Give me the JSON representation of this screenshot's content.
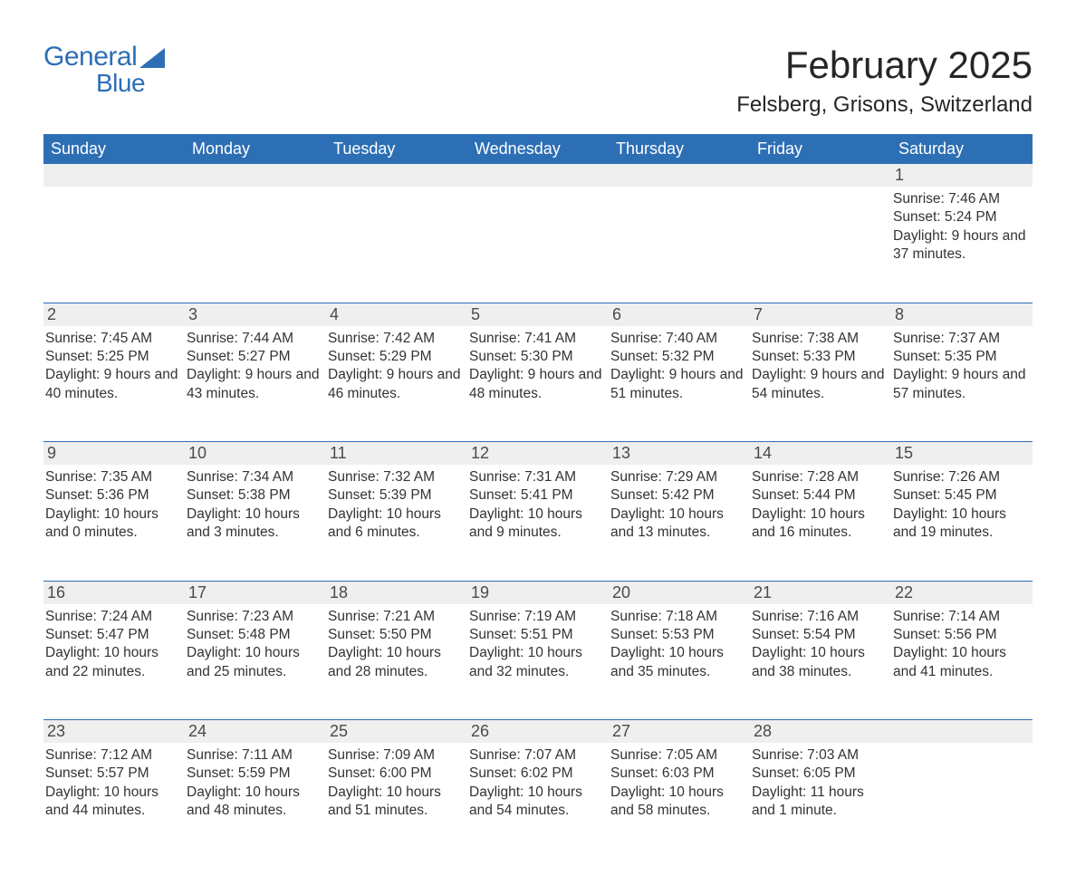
{
  "brand": {
    "general": "General",
    "blue": "Blue"
  },
  "title": "February 2025",
  "location": "Felsberg, Grisons, Switzerland",
  "colors": {
    "header_bg": "#2d6fb5",
    "header_text": "#ffffff",
    "daynum_bg": "#efefef",
    "row_border": "#2d6fb5",
    "body_text": "#333333",
    "page_bg": "#ffffff"
  },
  "weekdays": [
    "Sunday",
    "Monday",
    "Tuesday",
    "Wednesday",
    "Thursday",
    "Friday",
    "Saturday"
  ],
  "weeks": [
    {
      "days": [
        {
          "num": "",
          "sunrise": "",
          "sunset": "",
          "daylight": ""
        },
        {
          "num": "",
          "sunrise": "",
          "sunset": "",
          "daylight": ""
        },
        {
          "num": "",
          "sunrise": "",
          "sunset": "",
          "daylight": ""
        },
        {
          "num": "",
          "sunrise": "",
          "sunset": "",
          "daylight": ""
        },
        {
          "num": "",
          "sunrise": "",
          "sunset": "",
          "daylight": ""
        },
        {
          "num": "",
          "sunrise": "",
          "sunset": "",
          "daylight": ""
        },
        {
          "num": "1",
          "sunrise": "Sunrise: 7:46 AM",
          "sunset": "Sunset: 5:24 PM",
          "daylight": "Daylight: 9 hours and 37 minutes."
        }
      ]
    },
    {
      "days": [
        {
          "num": "2",
          "sunrise": "Sunrise: 7:45 AM",
          "sunset": "Sunset: 5:25 PM",
          "daylight": "Daylight: 9 hours and 40 minutes."
        },
        {
          "num": "3",
          "sunrise": "Sunrise: 7:44 AM",
          "sunset": "Sunset: 5:27 PM",
          "daylight": "Daylight: 9 hours and 43 minutes."
        },
        {
          "num": "4",
          "sunrise": "Sunrise: 7:42 AM",
          "sunset": "Sunset: 5:29 PM",
          "daylight": "Daylight: 9 hours and 46 minutes."
        },
        {
          "num": "5",
          "sunrise": "Sunrise: 7:41 AM",
          "sunset": "Sunset: 5:30 PM",
          "daylight": "Daylight: 9 hours and 48 minutes."
        },
        {
          "num": "6",
          "sunrise": "Sunrise: 7:40 AM",
          "sunset": "Sunset: 5:32 PM",
          "daylight": "Daylight: 9 hours and 51 minutes."
        },
        {
          "num": "7",
          "sunrise": "Sunrise: 7:38 AM",
          "sunset": "Sunset: 5:33 PM",
          "daylight": "Daylight: 9 hours and 54 minutes."
        },
        {
          "num": "8",
          "sunrise": "Sunrise: 7:37 AM",
          "sunset": "Sunset: 5:35 PM",
          "daylight": "Daylight: 9 hours and 57 minutes."
        }
      ]
    },
    {
      "days": [
        {
          "num": "9",
          "sunrise": "Sunrise: 7:35 AM",
          "sunset": "Sunset: 5:36 PM",
          "daylight": "Daylight: 10 hours and 0 minutes."
        },
        {
          "num": "10",
          "sunrise": "Sunrise: 7:34 AM",
          "sunset": "Sunset: 5:38 PM",
          "daylight": "Daylight: 10 hours and 3 minutes."
        },
        {
          "num": "11",
          "sunrise": "Sunrise: 7:32 AM",
          "sunset": "Sunset: 5:39 PM",
          "daylight": "Daylight: 10 hours and 6 minutes."
        },
        {
          "num": "12",
          "sunrise": "Sunrise: 7:31 AM",
          "sunset": "Sunset: 5:41 PM",
          "daylight": "Daylight: 10 hours and 9 minutes."
        },
        {
          "num": "13",
          "sunrise": "Sunrise: 7:29 AM",
          "sunset": "Sunset: 5:42 PM",
          "daylight": "Daylight: 10 hours and 13 minutes."
        },
        {
          "num": "14",
          "sunrise": "Sunrise: 7:28 AM",
          "sunset": "Sunset: 5:44 PM",
          "daylight": "Daylight: 10 hours and 16 minutes."
        },
        {
          "num": "15",
          "sunrise": "Sunrise: 7:26 AM",
          "sunset": "Sunset: 5:45 PM",
          "daylight": "Daylight: 10 hours and 19 minutes."
        }
      ]
    },
    {
      "days": [
        {
          "num": "16",
          "sunrise": "Sunrise: 7:24 AM",
          "sunset": "Sunset: 5:47 PM",
          "daylight": "Daylight: 10 hours and 22 minutes."
        },
        {
          "num": "17",
          "sunrise": "Sunrise: 7:23 AM",
          "sunset": "Sunset: 5:48 PM",
          "daylight": "Daylight: 10 hours and 25 minutes."
        },
        {
          "num": "18",
          "sunrise": "Sunrise: 7:21 AM",
          "sunset": "Sunset: 5:50 PM",
          "daylight": "Daylight: 10 hours and 28 minutes."
        },
        {
          "num": "19",
          "sunrise": "Sunrise: 7:19 AM",
          "sunset": "Sunset: 5:51 PM",
          "daylight": "Daylight: 10 hours and 32 minutes."
        },
        {
          "num": "20",
          "sunrise": "Sunrise: 7:18 AM",
          "sunset": "Sunset: 5:53 PM",
          "daylight": "Daylight: 10 hours and 35 minutes."
        },
        {
          "num": "21",
          "sunrise": "Sunrise: 7:16 AM",
          "sunset": "Sunset: 5:54 PM",
          "daylight": "Daylight: 10 hours and 38 minutes."
        },
        {
          "num": "22",
          "sunrise": "Sunrise: 7:14 AM",
          "sunset": "Sunset: 5:56 PM",
          "daylight": "Daylight: 10 hours and 41 minutes."
        }
      ]
    },
    {
      "days": [
        {
          "num": "23",
          "sunrise": "Sunrise: 7:12 AM",
          "sunset": "Sunset: 5:57 PM",
          "daylight": "Daylight: 10 hours and 44 minutes."
        },
        {
          "num": "24",
          "sunrise": "Sunrise: 7:11 AM",
          "sunset": "Sunset: 5:59 PM",
          "daylight": "Daylight: 10 hours and 48 minutes."
        },
        {
          "num": "25",
          "sunrise": "Sunrise: 7:09 AM",
          "sunset": "Sunset: 6:00 PM",
          "daylight": "Daylight: 10 hours and 51 minutes."
        },
        {
          "num": "26",
          "sunrise": "Sunrise: 7:07 AM",
          "sunset": "Sunset: 6:02 PM",
          "daylight": "Daylight: 10 hours and 54 minutes."
        },
        {
          "num": "27",
          "sunrise": "Sunrise: 7:05 AM",
          "sunset": "Sunset: 6:03 PM",
          "daylight": "Daylight: 10 hours and 58 minutes."
        },
        {
          "num": "28",
          "sunrise": "Sunrise: 7:03 AM",
          "sunset": "Sunset: 6:05 PM",
          "daylight": "Daylight: 11 hours and 1 minute."
        },
        {
          "num": "",
          "sunrise": "",
          "sunset": "",
          "daylight": ""
        }
      ]
    }
  ]
}
